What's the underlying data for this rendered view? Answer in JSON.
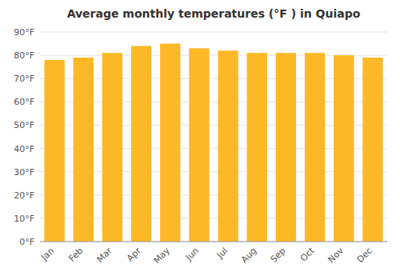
{
  "chart_data": {
    "type": "bar",
    "title": "Average monthly temperatures (°F ) in Quiapo",
    "categories": [
      "Jan",
      "Feb",
      "Mar",
      "Apr",
      "May",
      "Jun",
      "Jul",
      "Aug",
      "Sep",
      "Oct",
      "Nov",
      "Dec"
    ],
    "values": [
      78,
      79,
      81,
      84,
      85,
      83,
      82,
      81,
      81,
      81,
      80,
      79
    ],
    "color": "#FDB827",
    "ylim": [
      0,
      90
    ],
    "yticks": [
      {
        "value": 0,
        "label": "0°F"
      },
      {
        "value": 10,
        "label": "10°F"
      },
      {
        "value": 20,
        "label": "20°F"
      },
      {
        "value": 30,
        "label": "30°F"
      },
      {
        "value": 40,
        "label": "40°F"
      },
      {
        "value": 50,
        "label": "50°F"
      },
      {
        "value": 60,
        "label": "60°F"
      },
      {
        "value": 70,
        "label": "70°F"
      },
      {
        "value": 80,
        "label": "80°F"
      },
      {
        "value": 90,
        "label": "90°F"
      }
    ],
    "grid": true
  }
}
